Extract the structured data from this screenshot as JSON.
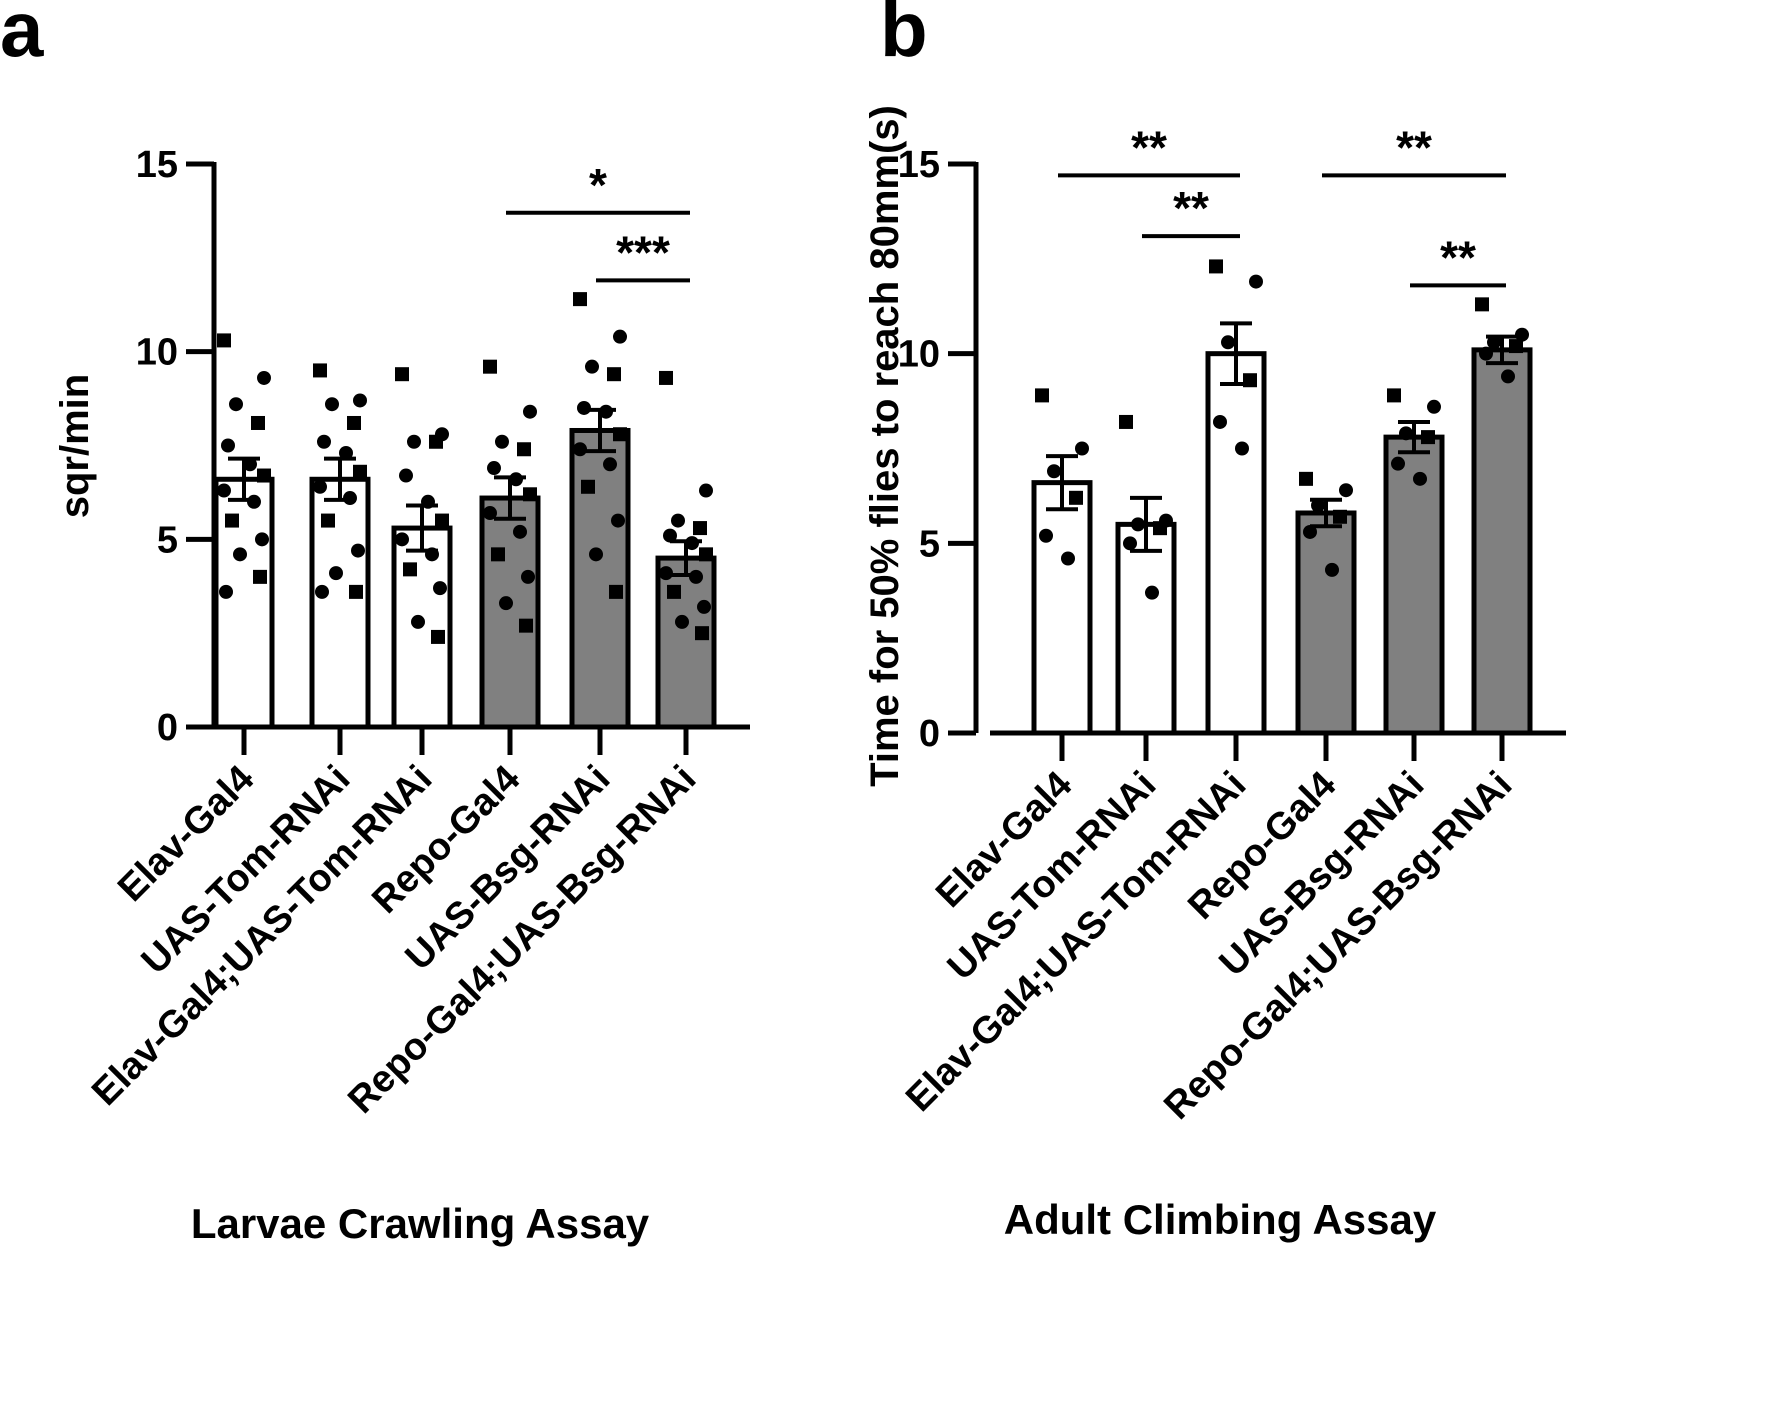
{
  "chart_data": [
    {
      "panel": "a",
      "type": "bar",
      "title": "Larvae Crawling Assay",
      "xlabel": "Larvae Crawling Assay",
      "ylabel": "sqr/min",
      "ylim": [
        0,
        15
      ],
      "yticks": [
        0,
        5,
        10,
        15
      ],
      "categories": [
        "Elav-Gal4",
        "UAS-Tom-RNAi",
        "Elav-Gal4;UAS-Tom-RNAi",
        "Repo-Gal4",
        "UAS-Bsg-RNAi",
        "Repo-Gal4;UAS-Bsg-RNAi"
      ],
      "values": [
        6.6,
        6.6,
        5.3,
        6.1,
        7.9,
        4.5
      ],
      "sem": [
        0.55,
        0.55,
        0.6,
        0.55,
        0.55,
        0.45
      ],
      "fill": [
        "#ffffff",
        "#ffffff",
        "#ffffff",
        "#808080",
        "#808080",
        "#808080"
      ],
      "points": [
        [
          10.3,
          9.3,
          8.6,
          8.1,
          7.5,
          7.0,
          6.7,
          6.3,
          6.0,
          5.5,
          5.0,
          4.6,
          4.0,
          3.6
        ],
        [
          9.5,
          8.7,
          8.6,
          8.1,
          7.6,
          7.3,
          6.8,
          6.4,
          6.1,
          5.5,
          4.7,
          4.1,
          3.6,
          3.6
        ],
        [
          9.4,
          7.8,
          7.6,
          7.6,
          6.7,
          6.0,
          5.5,
          5.0,
          4.6,
          4.2,
          3.7,
          2.8,
          2.4
        ],
        [
          9.6,
          8.4,
          7.6,
          7.4,
          6.9,
          6.6,
          6.2,
          5.7,
          5.2,
          4.6,
          4.0,
          3.3,
          2.7
        ],
        [
          11.4,
          10.4,
          9.6,
          9.4,
          8.5,
          8.4,
          7.8,
          7.4,
          7.0,
          6.4,
          5.5,
          4.6,
          3.6
        ],
        [
          9.3,
          6.3,
          5.5,
          5.3,
          5.1,
          4.9,
          4.6,
          4.1,
          4.0,
          3.6,
          3.2,
          2.8,
          2.5
        ]
      ],
      "significance": [
        {
          "from": 3,
          "to": 5,
          "label": "*",
          "y": 13.7
        },
        {
          "from": 4,
          "to": 5,
          "label": "***",
          "y": 11.9
        }
      ]
    },
    {
      "panel": "b",
      "type": "bar",
      "title": "Adult Climbing Assay",
      "xlabel": "Adult Climbing Assay",
      "ylabel": "Time for 50% flies to reach 80mm(s)",
      "ylim": [
        0,
        15
      ],
      "yticks": [
        0,
        5,
        10,
        15
      ],
      "categories": [
        "Elav-Gal4",
        "UAS-Tom-RNAi",
        "Elav-Gal4;UAS-Tom-RNAi",
        "Repo-Gal4",
        "UAS-Bsg-RNAi",
        "Repo-Gal4;UAS-Bsg-RNAi"
      ],
      "values": [
        6.6,
        5.5,
        10.0,
        5.8,
        7.8,
        10.1
      ],
      "sem": [
        0.7,
        0.7,
        0.8,
        0.35,
        0.4,
        0.35
      ],
      "fill": [
        "#ffffff",
        "#ffffff",
        "#ffffff",
        "#808080",
        "#808080",
        "#808080"
      ],
      "points": [
        [
          8.9,
          7.5,
          6.9,
          6.2,
          5.2,
          4.6
        ],
        [
          8.2,
          5.6,
          5.5,
          5.4,
          5.0,
          3.7
        ],
        [
          12.3,
          11.9,
          10.3,
          9.3,
          8.2,
          7.5
        ],
        [
          6.7,
          6.4,
          6.0,
          5.7,
          5.3,
          4.3
        ],
        [
          8.9,
          8.6,
          7.9,
          7.8,
          7.1,
          6.7
        ],
        [
          11.3,
          10.5,
          10.3,
          10.2,
          10.0,
          9.4
        ]
      ],
      "significance": [
        {
          "from": 0,
          "to": 2,
          "label": "**",
          "y": 14.7
        },
        {
          "from": 1,
          "to": 2,
          "label": "**",
          "y": 13.1
        },
        {
          "from": 3,
          "to": 5,
          "label": "**",
          "y": 14.7
        },
        {
          "from": 4,
          "to": 5,
          "label": "**",
          "y": 11.8
        }
      ]
    }
  ]
}
